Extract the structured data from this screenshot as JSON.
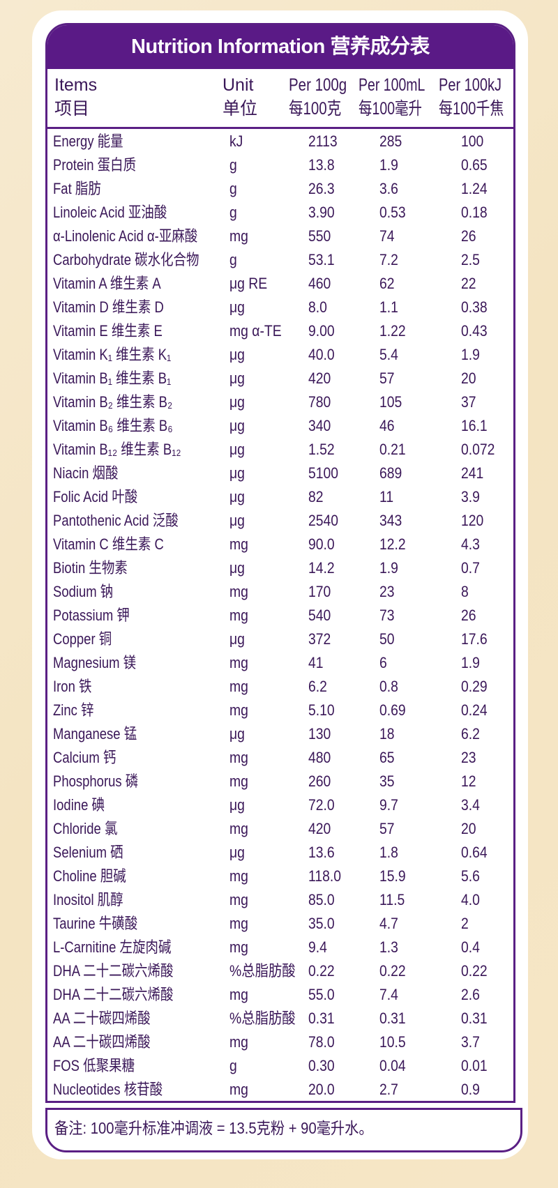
{
  "title": "Nutrition Information 营养成分表",
  "colors": {
    "frame": "#5a1a86",
    "text": "#3a1758",
    "background": "#f6e6c6"
  },
  "columns": [
    {
      "en": "Items",
      "zh": "项目"
    },
    {
      "en": "Unit",
      "zh": "单位"
    },
    {
      "en": "Per 100g",
      "zh": "每100克"
    },
    {
      "en": "Per 100mL",
      "zh": "每100毫升"
    },
    {
      "en": "Per 100kJ",
      "zh": "每100千焦"
    }
  ],
  "rows": [
    [
      "Energy 能量",
      "kJ",
      "2113",
      "285",
      "100"
    ],
    [
      "Protein 蛋白质",
      "g",
      "13.8",
      "1.9",
      "0.65"
    ],
    [
      "Fat 脂肪",
      "g",
      "26.3",
      "3.6",
      "1.24"
    ],
    [
      "Linoleic Acid 亚油酸",
      "g",
      "3.90",
      "0.53",
      "0.18"
    ],
    [
      "α-Linolenic Acid α-亚麻酸",
      "mg",
      "550",
      "74",
      "26"
    ],
    [
      "Carbohydrate 碳水化合物",
      "g",
      "53.1",
      "7.2",
      "2.5"
    ],
    [
      "Vitamin A 维生素 A",
      "μg RE",
      "460",
      "62",
      "22"
    ],
    [
      "Vitamin D 维生素 D",
      "μg",
      "8.0",
      "1.1",
      "0.38"
    ],
    [
      "Vitamin E 维生素 E",
      "mg α-TE",
      "9.00",
      "1.22",
      "0.43"
    ],
    [
      "Vitamin K₁ 维生素 K₁",
      "μg",
      "40.0",
      "5.4",
      "1.9"
    ],
    [
      "Vitamin B₁ 维生素 B₁",
      "μg",
      "420",
      "57",
      "20"
    ],
    [
      "Vitamin B₂ 维生素 B₂",
      "μg",
      "780",
      "105",
      "37"
    ],
    [
      "Vitamin B₆ 维生素 B₆",
      "μg",
      "340",
      "46",
      "16.1"
    ],
    [
      "Vitamin B₁₂ 维生素 B₁₂",
      "μg",
      "1.52",
      "0.21",
      "0.072"
    ],
    [
      "Niacin 烟酸",
      "μg",
      "5100",
      "689",
      "241"
    ],
    [
      "Folic Acid 叶酸",
      "μg",
      "82",
      "11",
      "3.9"
    ],
    [
      "Pantothenic Acid 泛酸",
      "μg",
      "2540",
      "343",
      "120"
    ],
    [
      "Vitamin C 维生素 C",
      "mg",
      "90.0",
      "12.2",
      "4.3"
    ],
    [
      "Biotin 生物素",
      "μg",
      "14.2",
      "1.9",
      "0.7"
    ],
    [
      "Sodium 钠",
      "mg",
      "170",
      "23",
      "8"
    ],
    [
      "Potassium 钾",
      "mg",
      "540",
      "73",
      "26"
    ],
    [
      "Copper 铜",
      "μg",
      "372",
      "50",
      "17.6"
    ],
    [
      "Magnesium 镁",
      "mg",
      "41",
      "6",
      "1.9"
    ],
    [
      "Iron 铁",
      "mg",
      "6.2",
      "0.8",
      "0.29"
    ],
    [
      "Zinc 锌",
      "mg",
      "5.10",
      "0.69",
      "0.24"
    ],
    [
      "Manganese 锰",
      "μg",
      "130",
      "18",
      "6.2"
    ],
    [
      "Calcium 钙",
      "mg",
      "480",
      "65",
      "23"
    ],
    [
      "Phosphorus 磷",
      "mg",
      "260",
      "35",
      "12"
    ],
    [
      "Iodine 碘",
      "μg",
      "72.0",
      "9.7",
      "3.4"
    ],
    [
      "Chloride 氯",
      "mg",
      "420",
      "57",
      "20"
    ],
    [
      "Selenium 硒",
      "μg",
      "13.6",
      "1.8",
      "0.64"
    ],
    [
      "Choline 胆碱",
      "mg",
      "118.0",
      "15.9",
      "5.6"
    ],
    [
      "Inositol 肌醇",
      "mg",
      "85.0",
      "11.5",
      "4.0"
    ],
    [
      "Taurine 牛磺酸",
      "mg",
      "35.0",
      "4.7",
      "2"
    ],
    [
      "L-Carnitine 左旋肉碱",
      "mg",
      "9.4",
      "1.3",
      "0.4"
    ],
    [
      "DHA 二十二碳六烯酸",
      "%总脂肪酸",
      "0.22",
      "0.22",
      "0.22"
    ],
    [
      "DHA 二十二碳六烯酸",
      "mg",
      "55.0",
      "7.4",
      "2.6"
    ],
    [
      "AA 二十碳四烯酸",
      "%总脂肪酸",
      "0.31",
      "0.31",
      "0.31"
    ],
    [
      "AA 二十碳四烯酸",
      "mg",
      "78.0",
      "10.5",
      "3.7"
    ],
    [
      "FOS 低聚果糖",
      "g",
      "0.30",
      "0.04",
      "0.01"
    ],
    [
      "Nucleotides 核苷酸",
      "mg",
      "20.0",
      "2.7",
      "0.9"
    ]
  ],
  "note": "备注: 100毫升标准冲调液 = 13.5克粉 + 90毫升水。"
}
